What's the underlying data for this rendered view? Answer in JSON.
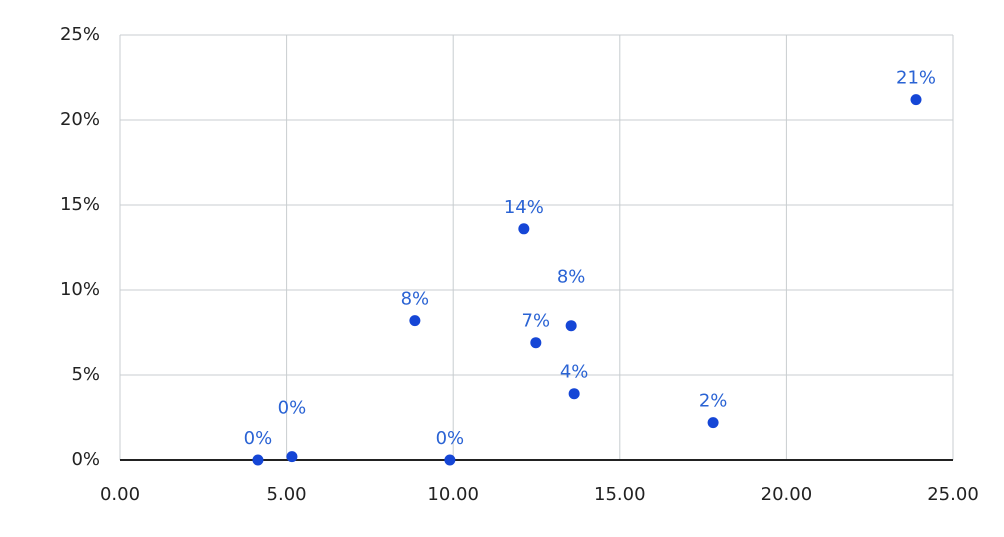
{
  "chart_data": {
    "type": "scatter",
    "x": [
      4.14,
      5.16,
      9.9,
      8.85,
      12.12,
      12.48,
      13.54,
      13.63,
      17.8,
      23.89
    ],
    "values": [
      0,
      0.2,
      0,
      8.2,
      13.6,
      6.9,
      7.9,
      3.9,
      2.2,
      21.2
    ],
    "value_labels": [
      "0%",
      "0%",
      "0%",
      "8%",
      "14%",
      "7%",
      "8%",
      "4%",
      "2%",
      "21%"
    ],
    "color": "#1546d6",
    "label_color": "#2a63d4",
    "xlim": [
      0,
      25
    ],
    "xticks": [
      {
        "value": 0,
        "label": "0.00"
      },
      {
        "value": 5,
        "label": "5.00"
      },
      {
        "value": 10,
        "label": "10.00"
      },
      {
        "value": 15,
        "label": "15.00"
      },
      {
        "value": 20,
        "label": "20.00"
      },
      {
        "value": 25,
        "label": "25.00"
      }
    ],
    "ylim": [
      0,
      25
    ],
    "yticks": [
      {
        "value": 0,
        "label": "0%"
      },
      {
        "value": 5,
        "label": "5%"
      },
      {
        "value": 10,
        "label": "10%"
      },
      {
        "value": 15,
        "label": "15%"
      },
      {
        "value": 20,
        "label": "20%"
      },
      {
        "value": 25,
        "label": "25%"
      }
    ],
    "grid": true
  }
}
